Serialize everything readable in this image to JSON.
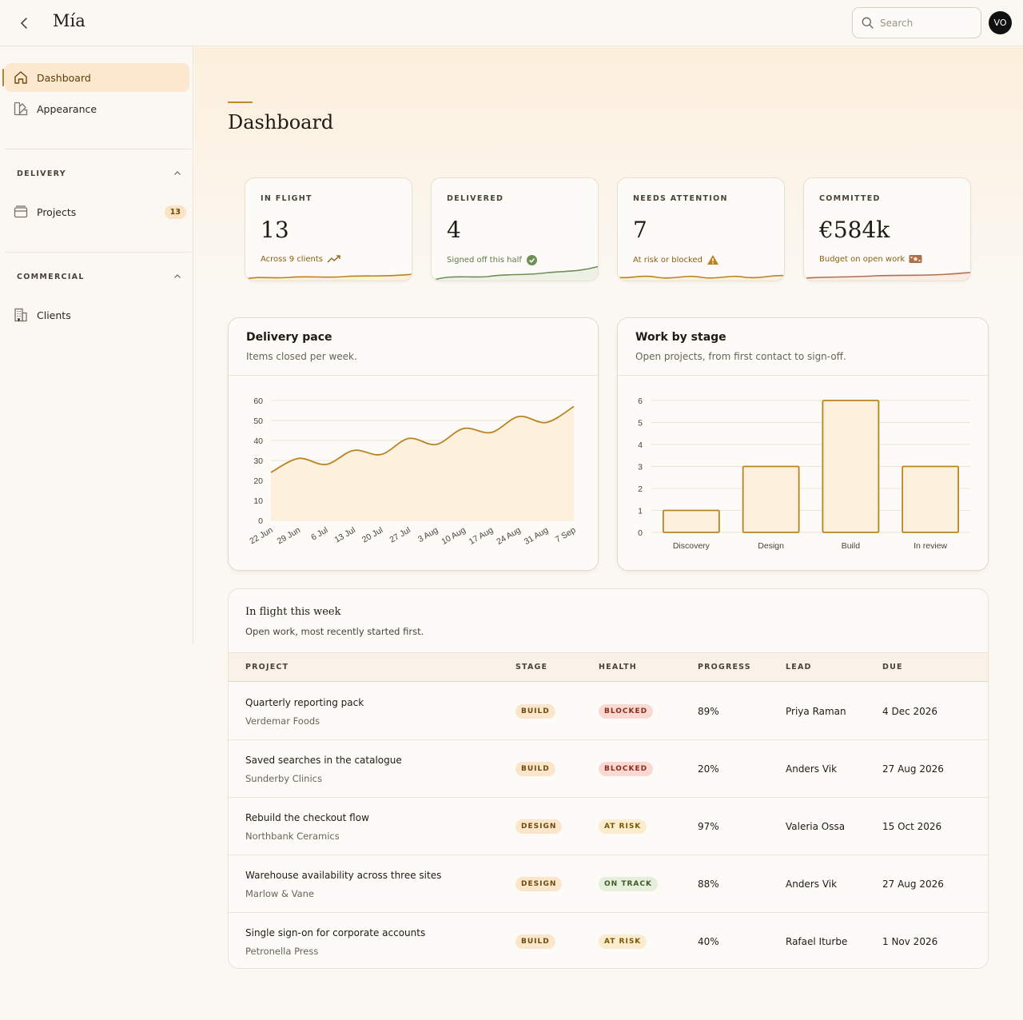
{
  "app": {
    "title": "Mía"
  },
  "search": {
    "placeholder": "Search"
  },
  "user": {
    "initials": "VO"
  },
  "sidebar": {
    "items": [
      {
        "label": "Dashboard",
        "icon": "home-icon",
        "active": true
      },
      {
        "label": "Appearance",
        "icon": "palette-icon"
      }
    ],
    "sections": [
      {
        "title": "DELIVERY",
        "items": [
          {
            "label": "Projects",
            "icon": "archive-icon",
            "count": "13"
          }
        ]
      },
      {
        "title": "COMMERCIAL",
        "items": [
          {
            "label": "Clients",
            "icon": "building-icon"
          }
        ]
      }
    ]
  },
  "page": {
    "title": "Dashboard"
  },
  "stats": [
    {
      "label": "IN FLIGHT",
      "value": "13",
      "sub": "Across 9 clients",
      "sub_icon": "trend-up-icon",
      "color": "#b98322"
    },
    {
      "label": "DELIVERED",
      "value": "4",
      "sub": "Signed off this half",
      "sub_icon": "check-circle-icon",
      "color": "#6f8f58"
    },
    {
      "label": "NEEDS ATTENTION",
      "value": "7",
      "sub": "At risk or blocked",
      "sub_icon": "warning-icon",
      "color": "#b98322"
    },
    {
      "label": "COMMITTED",
      "value": "€584k",
      "sub": "Budget on open work",
      "sub_icon": "cash-icon",
      "color": "#b0704f"
    }
  ],
  "delivery_pace": {
    "title": "Delivery pace",
    "subtitle": "Items closed per week."
  },
  "work_by_stage": {
    "title": "Work by stage",
    "subtitle": "Open projects, from first contact to sign-off."
  },
  "chart_data": [
    {
      "type": "area",
      "title": "Delivery pace",
      "x": [
        "22 Jun",
        "29 Jun",
        "6 Jul",
        "13 Jul",
        "20 Jul",
        "27 Jul",
        "3 Aug",
        "10 Aug",
        "17 Aug",
        "24 Aug",
        "31 Aug",
        "7 Sep"
      ],
      "values": [
        24,
        31,
        28,
        35,
        33,
        41,
        38,
        46,
        44,
        52,
        49,
        57
      ],
      "ylim": [
        0,
        60
      ],
      "yticks": [
        0,
        10,
        20,
        30,
        40,
        50,
        60
      ],
      "grid": true,
      "color": "#b98322",
      "fill": "#fdf0dc"
    },
    {
      "type": "bar",
      "title": "Work by stage",
      "categories": [
        "Discovery",
        "Design",
        "Build",
        "In review"
      ],
      "values": [
        1,
        3,
        6,
        3
      ],
      "ylim": [
        0,
        6
      ],
      "yticks": [
        0,
        1,
        2,
        3,
        4,
        5,
        6
      ],
      "grid": true,
      "color": "#b98322",
      "fill": "#fdf0dc"
    }
  ],
  "table": {
    "title": "In flight this week",
    "subtitle": "Open work, most recently started first.",
    "columns": [
      "PROJECT",
      "STAGE",
      "HEALTH",
      "PROGRESS",
      "LEAD",
      "DUE"
    ],
    "rows": [
      {
        "name": "Quarterly reporting pack",
        "client": "Verdemar Foods",
        "stage": "BUILD",
        "health": "BLOCKED",
        "progress": "89%",
        "lead": "Priya Raman",
        "due": "4 Dec 2026"
      },
      {
        "name": "Saved searches in the catalogue",
        "client": "Sunderby Clinics",
        "stage": "BUILD",
        "health": "BLOCKED",
        "progress": "20%",
        "lead": "Anders Vik",
        "due": "27 Aug 2026"
      },
      {
        "name": "Rebuild the checkout flow",
        "client": "Northbank Ceramics",
        "stage": "DESIGN",
        "health": "AT RISK",
        "progress": "97%",
        "lead": "Valeria Ossa",
        "due": "15 Oct 2026"
      },
      {
        "name": "Warehouse availability across three sites",
        "client": "Marlow & Vane",
        "stage": "DESIGN",
        "health": "ON TRACK",
        "progress": "88%",
        "lead": "Anders Vik",
        "due": "27 Aug 2026"
      },
      {
        "name": "Single sign-on for corporate accounts",
        "client": "Petronella Press",
        "stage": "BUILD",
        "health": "AT RISK",
        "progress": "40%",
        "lead": "Rafael Iturbe",
        "due": "1 Nov 2026"
      }
    ]
  }
}
